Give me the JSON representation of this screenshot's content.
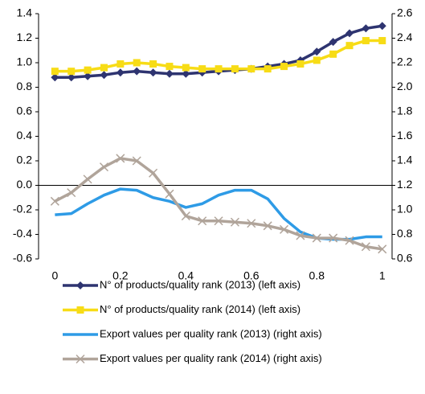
{
  "chart_data": {
    "type": "line",
    "x": [
      0,
      0.05,
      0.1,
      0.15,
      0.2,
      0.25,
      0.3,
      0.35,
      0.4,
      0.45,
      0.5,
      0.55,
      0.6,
      0.65,
      0.7,
      0.75,
      0.8,
      0.85,
      0.9,
      0.95,
      1
    ],
    "xlim": [
      -0.05,
      1.03
    ],
    "xticks": [
      0,
      0.2,
      0.4,
      0.6,
      0.8,
      1
    ],
    "ylim": [
      -0.6,
      1.4
    ],
    "yticks": [
      -0.6,
      -0.4,
      -0.2,
      {
        "value": 0,
        "label": "0.0"
      },
      0.2,
      0.4,
      0.6,
      0.8,
      {
        "value": 1,
        "label": "1.0"
      },
      1.2,
      1.4
    ],
    "y2lim": [
      0.6,
      2.6
    ],
    "y2ticks": [
      0.6,
      0.8,
      {
        "value": 1,
        "label": "1.0"
      },
      1.2,
      1.4,
      1.6,
      1.8,
      {
        "value": 2,
        "label": "2.0"
      },
      2.2,
      2.4,
      2.6
    ],
    "zero_line": true,
    "series": [
      {
        "name": "N° of products/quality rank (2013) (left axis)",
        "color": "#2e3470",
        "marker": "diamond",
        "values": [
          0.88,
          0.88,
          0.89,
          0.9,
          0.92,
          0.93,
          0.92,
          0.91,
          0.91,
          0.92,
          0.93,
          0.94,
          0.95,
          0.97,
          0.99,
          1.02,
          1.09,
          1.17,
          1.24,
          1.28,
          1.3
        ]
      },
      {
        "name": "N° of products/quality rank (2014) (left axis)",
        "color": "#f7dc16",
        "marker": "square",
        "values": [
          0.93,
          0.93,
          0.94,
          0.96,
          0.99,
          1.0,
          0.99,
          0.97,
          0.96,
          0.95,
          0.95,
          0.95,
          0.95,
          0.95,
          0.97,
          0.99,
          1.02,
          1.07,
          1.14,
          1.18,
          1.18
        ]
      },
      {
        "name": "Export values per quality rank (2013) (right axis)",
        "color": "#2e9be6",
        "marker": "none",
        "axis": "y2",
        "values": [
          0.96,
          0.97,
          1.05,
          1.12,
          1.17,
          1.16,
          1.1,
          1.07,
          1.02,
          1.05,
          1.12,
          1.16,
          1.16,
          1.09,
          0.93,
          0.82,
          0.77,
          0.76,
          0.76,
          0.78,
          0.78
        ]
      },
      {
        "name": "Export values per quality rank (2014) (right axis)",
        "color": "#b0a49a",
        "marker": "cross",
        "axis": "y2",
        "values": [
          1.07,
          1.14,
          1.25,
          1.35,
          1.42,
          1.4,
          1.3,
          1.13,
          0.95,
          0.91,
          0.91,
          0.9,
          0.89,
          0.87,
          0.84,
          0.79,
          0.77,
          0.77,
          0.75,
          0.7,
          0.68
        ]
      }
    ]
  }
}
